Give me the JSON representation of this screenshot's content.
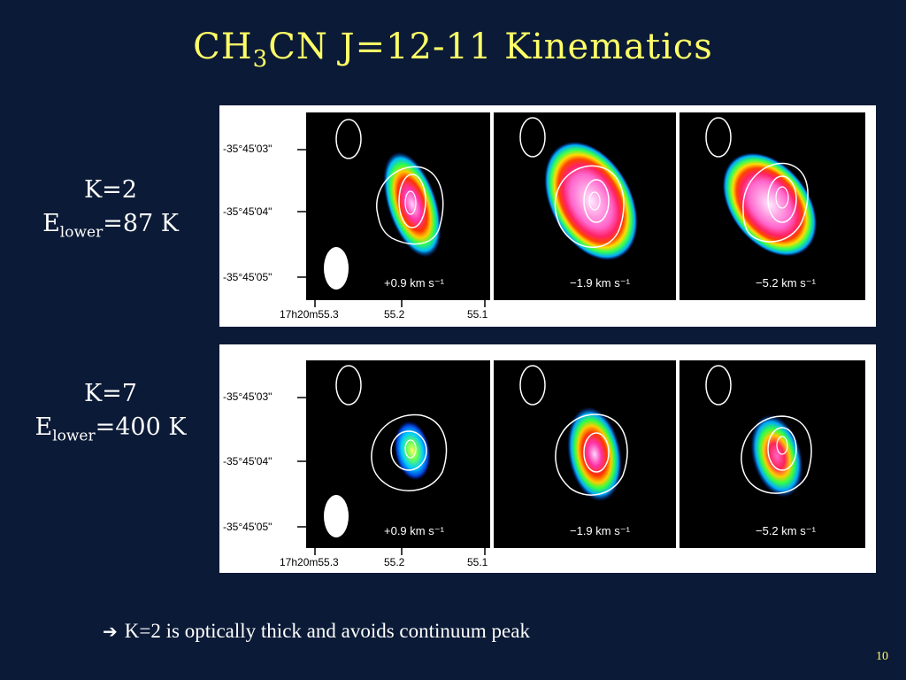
{
  "title": {
    "pre": "CH",
    "sub": "3",
    "post": "CN J=12-11 Kinematics"
  },
  "rows": [
    {
      "k_label": "K=2",
      "e_pre": "E",
      "e_sub": "lower",
      "e_post": "=87 K",
      "ytick_labels": [
        "-35°45'03\"",
        "-35°45'04\"",
        "-35°45'05\""
      ],
      "xtick_labels": [
        "17h20m55.3",
        "55.2",
        "55.1"
      ],
      "panels": [
        {
          "velocity": "+0.9 km s⁻¹"
        },
        {
          "velocity": "−1.9 km s⁻¹"
        },
        {
          "velocity": "−5.2 km s⁻¹"
        }
      ]
    },
    {
      "k_label": "K=7",
      "e_pre": "E",
      "e_sub": "lower",
      "e_post": "=400 K",
      "ytick_labels": [
        "-35°45'03\"",
        "-35°45'04\"",
        "-35°45'05\""
      ],
      "xtick_labels": [
        "17h20m55.3",
        "55.2",
        "55.1"
      ],
      "panels": [
        {
          "velocity": "+0.9 km s⁻¹"
        },
        {
          "velocity": "−1.9 km s⁻¹"
        },
        {
          "velocity": "−5.2 km s⁻¹"
        }
      ]
    }
  ],
  "bullet": {
    "arrow": "➔",
    "text": "K=2 is optically thick and avoids continuum peak"
  },
  "page_number": "10"
}
